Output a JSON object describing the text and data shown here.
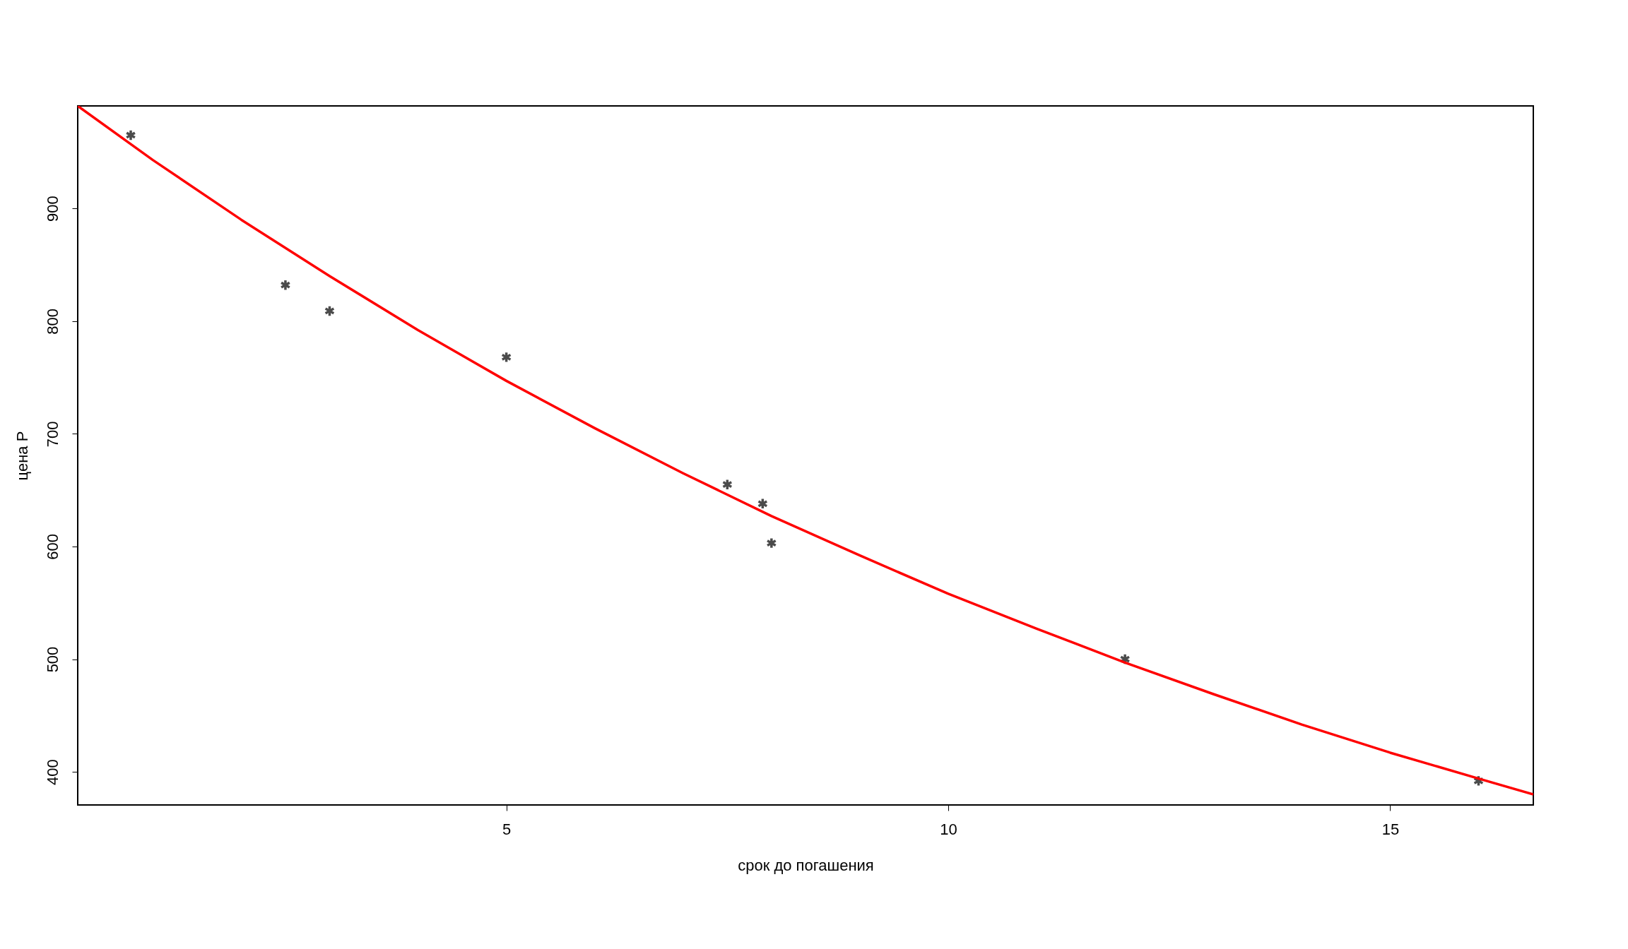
{
  "chart_data": {
    "type": "scatter",
    "xlabel": "срок до погашения",
    "ylabel": "цена P",
    "xlim": [
      0.15,
      16.62
    ],
    "ylim": [
      370.6,
      991
    ],
    "xticks": [
      5,
      10,
      15
    ],
    "yticks": [
      400,
      500,
      600,
      700,
      800,
      900
    ],
    "grid": false,
    "series": [
      {
        "color": "#000000",
        "marker": "cross",
        "x": [
          0.75,
          2.5,
          3.0,
          5.0,
          7.5,
          7.9,
          8.0,
          12.0,
          16.0
        ],
        "values": [
          965,
          832,
          809,
          768,
          655,
          638,
          603,
          500,
          392
        ]
      },
      {
        "type": "line",
        "color": "#ff0000",
        "line_style": "solid",
        "x": [
          0.15,
          1,
          2,
          3,
          4,
          5,
          6,
          7,
          8,
          9,
          10,
          11,
          12,
          13,
          14,
          15,
          16,
          16.62
        ],
        "values": [
          991,
          943,
          890,
          840,
          792,
          747,
          705,
          665,
          627,
          592,
          558,
          527,
          497,
          469,
          442,
          417,
          394,
          380
        ]
      }
    ]
  }
}
